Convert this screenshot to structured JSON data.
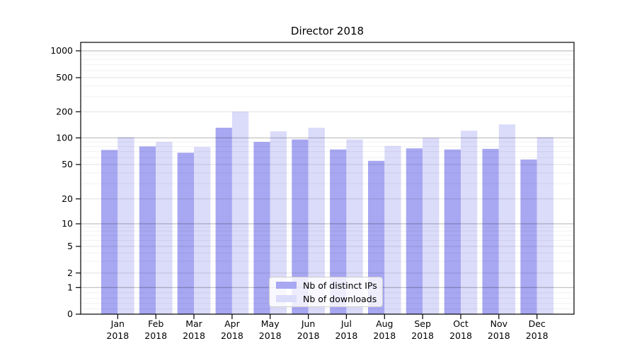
{
  "chart_data": {
    "type": "bar",
    "title": "Director 2018",
    "categories": [
      [
        "Jan",
        "2018"
      ],
      [
        "Feb",
        "2018"
      ],
      [
        "Mar",
        "2018"
      ],
      [
        "Apr",
        "2018"
      ],
      [
        "May",
        "2018"
      ],
      [
        "Jun",
        "2018"
      ],
      [
        "Jul",
        "2018"
      ],
      [
        "Aug",
        "2018"
      ],
      [
        "Sep",
        "2018"
      ],
      [
        "Oct",
        "2018"
      ],
      [
        "Nov",
        "2018"
      ],
      [
        "Dec",
        "2018"
      ]
    ],
    "series": [
      {
        "name": "Nb of distinct IPs",
        "color": "#a7a7f2",
        "values": [
          73,
          80,
          68,
          131,
          90,
          96,
          74,
          55,
          76,
          74,
          75,
          57
        ]
      },
      {
        "name": "Nb of downloads",
        "color": "#dbdbfa",
        "values": [
          102,
          90,
          79,
          200,
          119,
          131,
          96,
          81,
          100,
          121,
          143,
          102
        ]
      }
    ],
    "yscale": "symlog",
    "y_ticks": [
      0,
      1,
      2,
      5,
      10,
      20,
      50,
      100,
      200,
      500,
      1000
    ],
    "ylim": [
      0,
      1250
    ],
    "grid": "both",
    "legend_position": "lower center",
    "background_color": "#ffffff",
    "axis_color": "#000000"
  }
}
